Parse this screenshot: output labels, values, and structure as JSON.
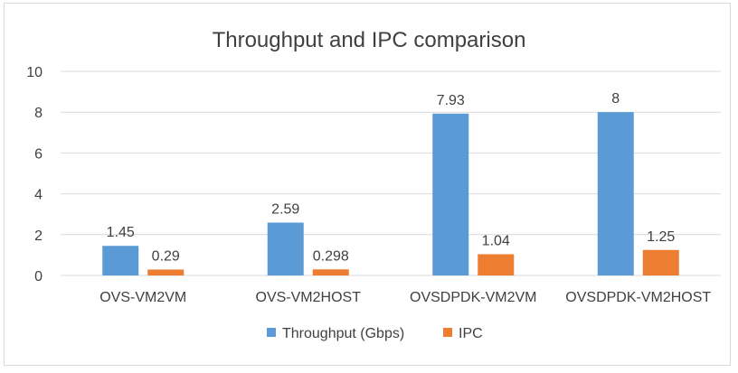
{
  "chart_data": {
    "type": "bar",
    "title": "Throughput and IPC comparison",
    "categories": [
      "OVS-VM2VM",
      "OVS-VM2HOST",
      "OVSDPDK-VM2VM",
      "OVSDPDK-VM2HOST"
    ],
    "series": [
      {
        "name": "Throughput (Gbps)",
        "values": [
          1.45,
          2.59,
          7.93,
          8
        ],
        "labels": [
          "1.45",
          "2.59",
          "7.93",
          "8"
        ],
        "color": "#5b9bd5"
      },
      {
        "name": "IPC",
        "values": [
          0.29,
          0.298,
          1.04,
          1.25
        ],
        "labels": [
          "0.29",
          "0.298",
          "1.04",
          "1.25"
        ],
        "color": "#ed7d31"
      }
    ],
    "ylim": [
      0,
      10
    ],
    "yticks": [
      "0",
      "2",
      "4",
      "6",
      "8",
      "10"
    ],
    "xlabel": "",
    "ylabel": "",
    "grid": true,
    "legend_position": "bottom"
  }
}
